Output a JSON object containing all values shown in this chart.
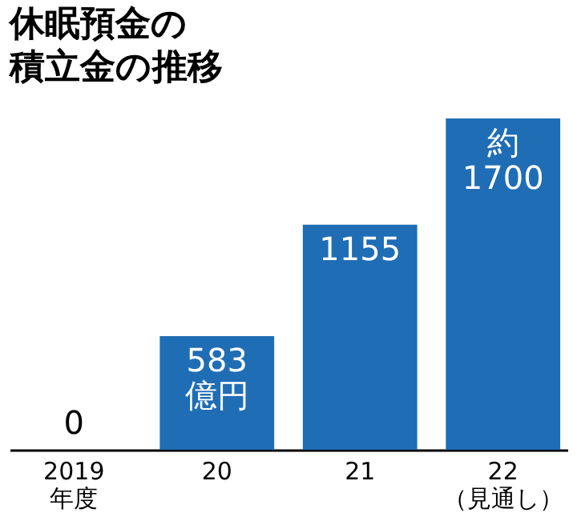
{
  "chart_data": {
    "type": "bar",
    "title": "休眠預金の積立金の推移",
    "categories": [
      "2019\n年度",
      "20",
      "21",
      "22\n（見通し）"
    ],
    "values": [
      0,
      583,
      1155,
      1700
    ],
    "value_labels": [
      "0",
      "583\n億円",
      "1155",
      "約\n1700"
    ],
    "color": "#1f6db5"
  }
}
